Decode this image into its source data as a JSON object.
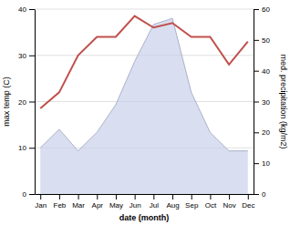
{
  "chart_data": {
    "type": "line",
    "categories": [
      "Jan",
      "Feb",
      "Mar",
      "Apr",
      "May",
      "Jun",
      "Jul",
      "Aug",
      "Sep",
      "Oct",
      "Nov",
      "Dec"
    ],
    "xlabel": "date (month)",
    "ylabel": "max temp (C)",
    "y2label": "med. precipitation (kg/m2)",
    "ylim": [
      0,
      40
    ],
    "yticks": [
      0,
      10,
      20,
      30,
      40
    ],
    "y2lim": [
      0,
      60
    ],
    "y2ticks": [
      0,
      10,
      20,
      30,
      40,
      50,
      60
    ],
    "grid": true,
    "series": [
      {
        "type": "line",
        "color": "#c0504d",
        "values": [
          18.5,
          22,
          30,
          34,
          34,
          38.5,
          36,
          37,
          34,
          34,
          28,
          33
        ]
      },
      {
        "type": "area",
        "axis": "y2",
        "color": "#c5cce8",
        "values": [
          15,
          21,
          14,
          20,
          29,
          43,
          55,
          57,
          33,
          20,
          14,
          14
        ]
      }
    ]
  }
}
